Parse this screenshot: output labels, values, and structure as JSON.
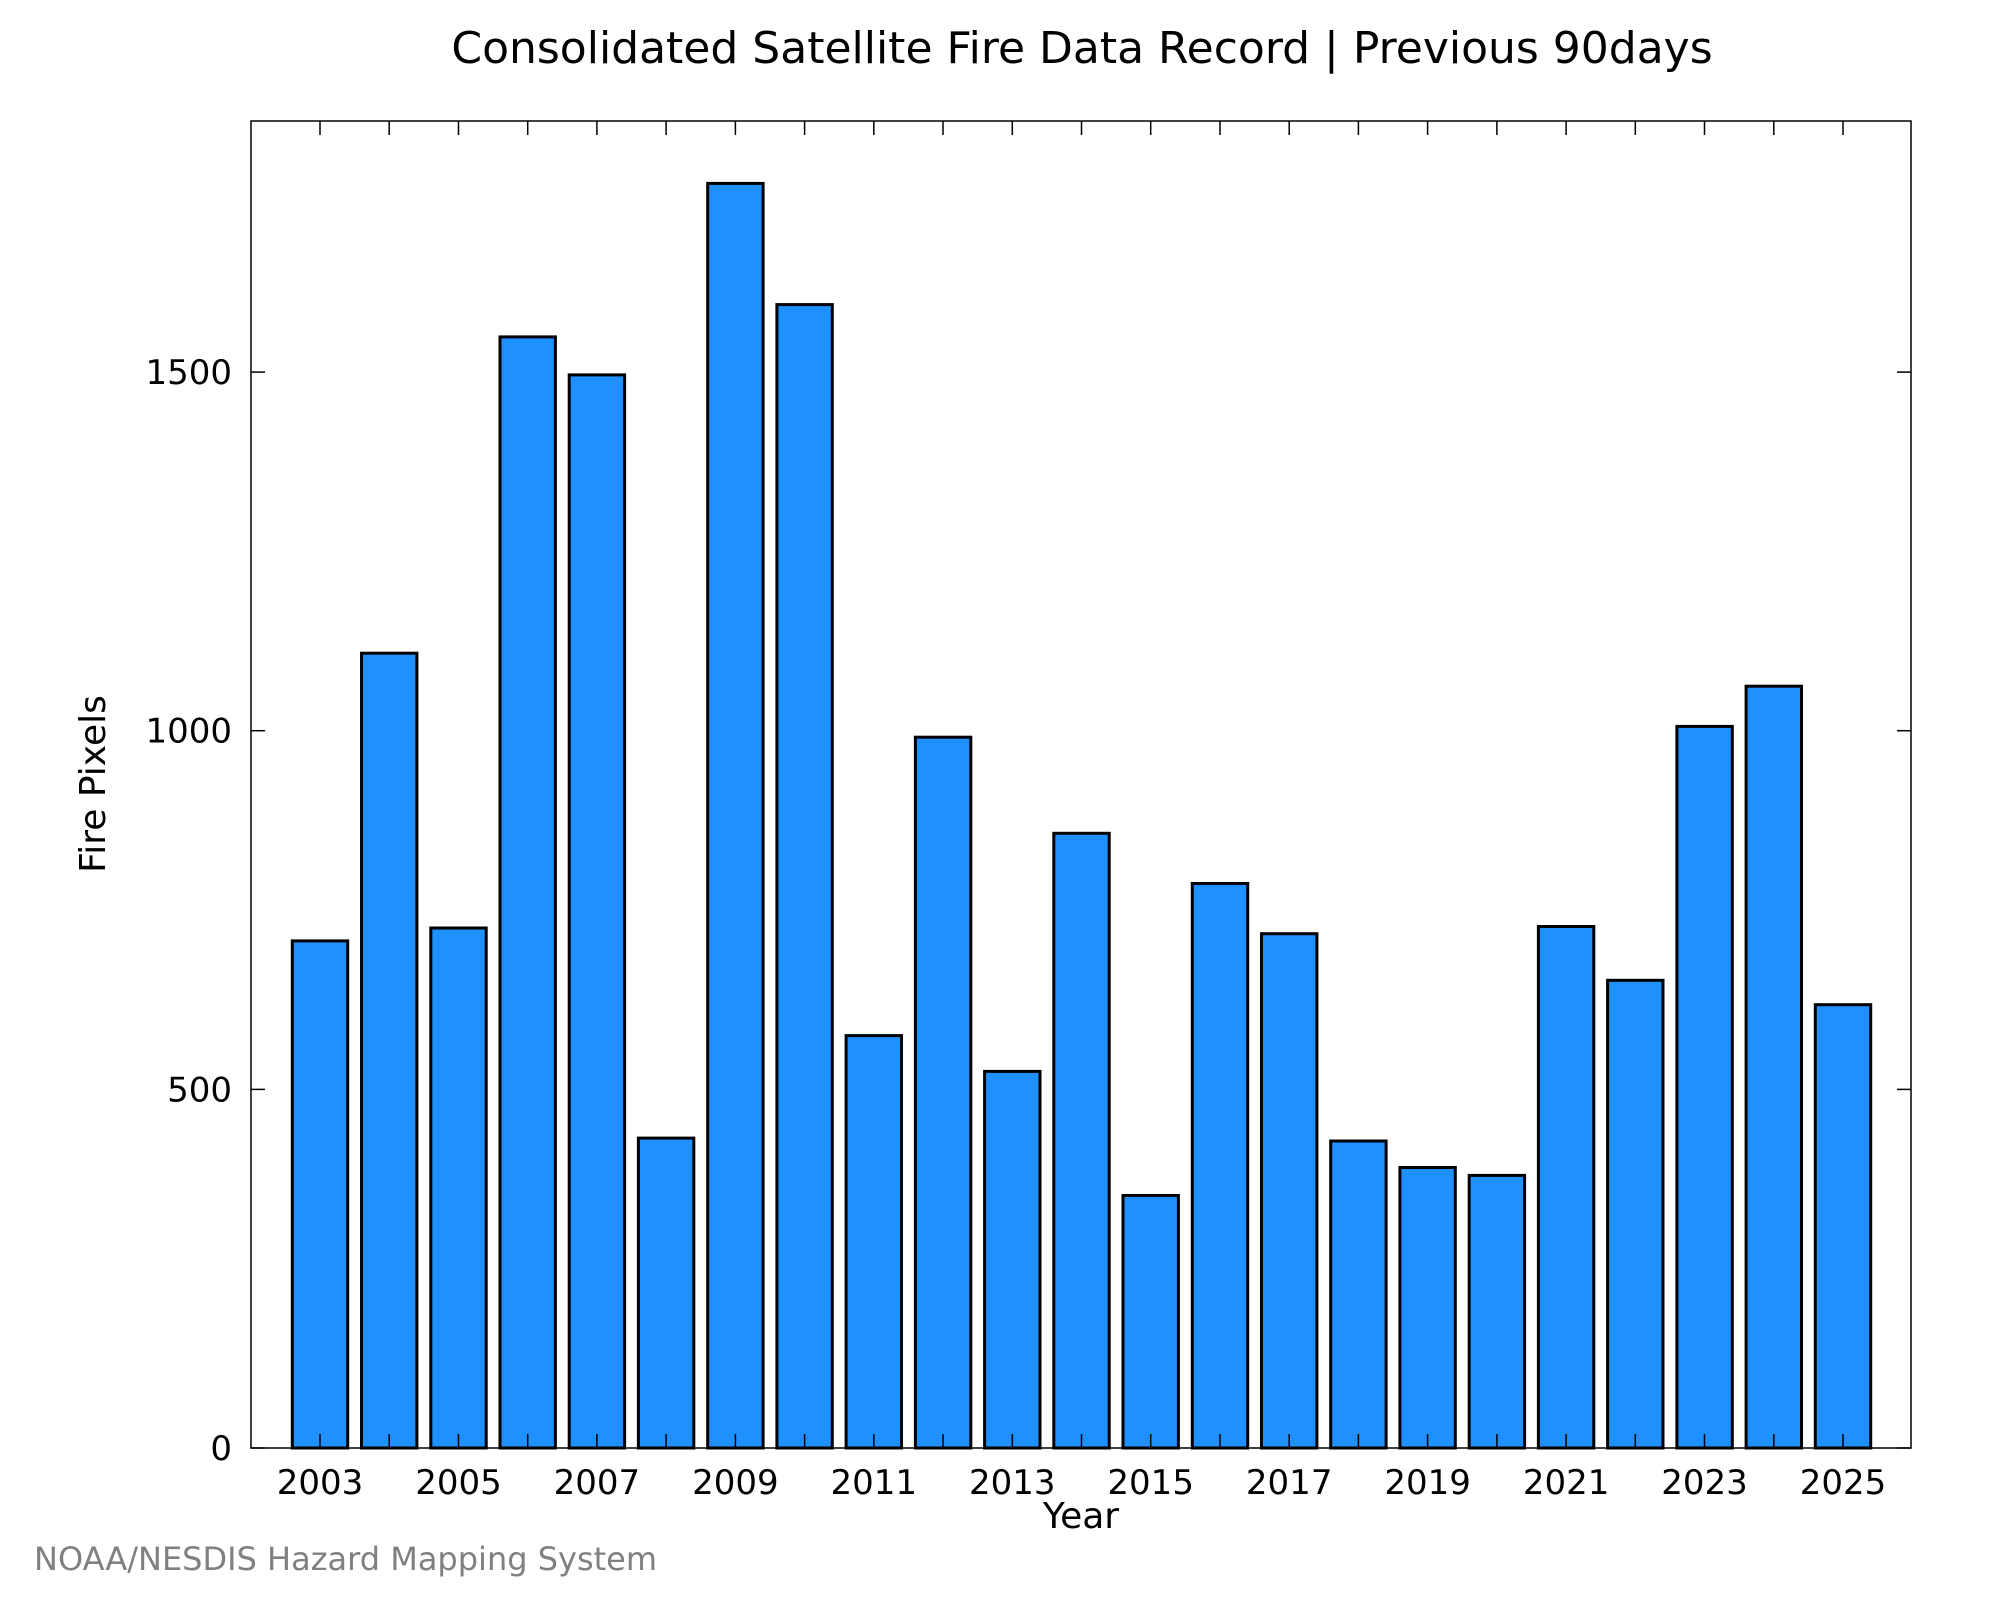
{
  "chart_data": {
    "type": "bar",
    "title": "Consolidated Satellite Fire Data Record | Previous 90days",
    "xlabel": "Year",
    "ylabel": "Fire Pixels",
    "categories": [
      "2003",
      "2004",
      "2005",
      "2006",
      "2007",
      "2008",
      "2009",
      "2010",
      "2011",
      "2012",
      "2013",
      "2014",
      "2015",
      "2016",
      "2017",
      "2018",
      "2019",
      "2020",
      "2021",
      "2022",
      "2023",
      "2024",
      "2025"
    ],
    "x_tick_labels": [
      "2003",
      "2005",
      "2007",
      "2009",
      "2011",
      "2013",
      "2015",
      "2017",
      "2019",
      "2021",
      "2023",
      "2025"
    ],
    "values": [
      707,
      1108,
      725,
      1549,
      1496,
      432,
      1763,
      1594,
      575,
      991,
      525,
      857,
      352,
      787,
      717,
      428,
      391,
      380,
      727,
      652,
      1006,
      1062,
      618
    ],
    "ylim": [
      0,
      1850
    ],
    "yticks": [
      0,
      500,
      1000,
      1500
    ],
    "grid": false,
    "bar_color": "#1e90ff",
    "bar_edge_color": "#000000",
    "credit": "NOAA/NESDIS Hazard Mapping System",
    "credit_color": "#808080"
  }
}
